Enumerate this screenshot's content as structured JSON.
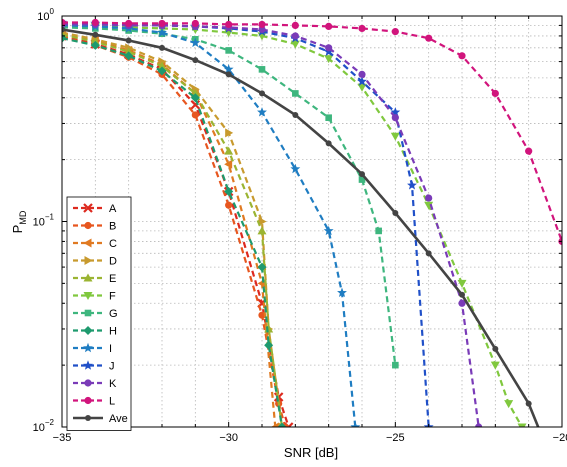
{
  "chart_data": {
    "type": "line",
    "title": "",
    "xlabel": "SNR [dB]",
    "ylabel": {
      "main": "P",
      "sub": "MD"
    },
    "xlim": [
      -35,
      -20
    ],
    "ylim": [
      0.01,
      1
    ],
    "y_scale": "log",
    "grid": true,
    "legend_position": "bottom-left",
    "x_ticks": [
      -35,
      -30,
      -25,
      -20
    ],
    "x_tick_labels": [
      "−35",
      "−30",
      "−25",
      "−20"
    ],
    "y_ticks": [
      0.01,
      0.1,
      1
    ],
    "y_tick_labels": [
      {
        "base": "10",
        "exp": "−2"
      },
      {
        "base": "10",
        "exp": "−1"
      },
      {
        "base": "10",
        "exp": "0"
      }
    ],
    "series": [
      {
        "name": "A",
        "color": "#dd2a1f",
        "marker": "x",
        "x": [
          -35,
          -34,
          -33,
          -32,
          -31,
          -30,
          -29,
          -28.5,
          -28.2
        ],
        "y": [
          0.8,
          0.73,
          0.65,
          0.55,
          0.37,
          0.14,
          0.04,
          0.014,
          0.01
        ]
      },
      {
        "name": "B",
        "color": "#e7561f",
        "marker": "circle",
        "x": [
          -35,
          -34,
          -33,
          -32,
          -31,
          -30,
          -29,
          -28.5,
          -28.3
        ],
        "y": [
          0.79,
          0.72,
          0.63,
          0.52,
          0.33,
          0.12,
          0.035,
          0.013,
          0.01
        ]
      },
      {
        "name": "C",
        "color": "#e07a22",
        "marker": "triangle-left",
        "x": [
          -35,
          -34,
          -33,
          -32,
          -31,
          -30,
          -29,
          -28.6
        ],
        "y": [
          0.82,
          0.76,
          0.68,
          0.58,
          0.42,
          0.19,
          0.05,
          0.01
        ]
      },
      {
        "name": "D",
        "color": "#c89a2e",
        "marker": "triangle-right",
        "x": [
          -35,
          -34,
          -33,
          -32,
          -31,
          -30,
          -29,
          -28.8,
          -28.4
        ],
        "y": [
          0.83,
          0.77,
          0.7,
          0.6,
          0.44,
          0.27,
          0.1,
          0.03,
          0.01
        ]
      },
      {
        "name": "E",
        "color": "#9bb432",
        "marker": "triangle-up",
        "x": [
          -35,
          -34,
          -33,
          -32,
          -31,
          -30,
          -29,
          -28.8,
          -28.4
        ],
        "y": [
          0.81,
          0.75,
          0.67,
          0.57,
          0.42,
          0.22,
          0.09,
          0.03,
          0.01
        ]
      },
      {
        "name": "F",
        "color": "#80c83e",
        "marker": "triangle-down",
        "x": [
          -35,
          -34,
          -33,
          -32,
          -31,
          -30,
          -29,
          -28,
          -27,
          -26,
          -25,
          -24,
          -23,
          -22,
          -21.6,
          -21.2
        ],
        "y": [
          0.9,
          0.89,
          0.88,
          0.87,
          0.86,
          0.83,
          0.8,
          0.73,
          0.62,
          0.45,
          0.26,
          0.12,
          0.05,
          0.02,
          0.013,
          0.01
        ]
      },
      {
        "name": "G",
        "color": "#3eb67e",
        "marker": "square",
        "x": [
          -35,
          -34,
          -33,
          -32,
          -31,
          -30,
          -29,
          -28,
          -27,
          -26,
          -25.5,
          -25
        ],
        "y": [
          0.88,
          0.87,
          0.85,
          0.82,
          0.77,
          0.68,
          0.55,
          0.42,
          0.32,
          0.16,
          0.09,
          0.02
        ]
      },
      {
        "name": "H",
        "color": "#1e9a6e",
        "marker": "diamond",
        "x": [
          -35,
          -34,
          -33,
          -32,
          -31,
          -30,
          -29,
          -28.8,
          -28.4
        ],
        "y": [
          0.78,
          0.72,
          0.64,
          0.54,
          0.4,
          0.14,
          0.06,
          0.025,
          0.01
        ]
      },
      {
        "name": "I",
        "color": "#1f7dc2",
        "marker": "star",
        "x": [
          -35,
          -34,
          -33,
          -32,
          -31,
          -30,
          -29,
          -28,
          -27,
          -26.6,
          -26.2
        ],
        "y": [
          0.9,
          0.89,
          0.87,
          0.83,
          0.74,
          0.55,
          0.34,
          0.18,
          0.09,
          0.045,
          0.01
        ]
      },
      {
        "name": "J",
        "color": "#2050c8",
        "marker": "star",
        "x": [
          -35,
          -34,
          -33,
          -32,
          -31,
          -30,
          -29,
          -28,
          -27,
          -26,
          -25,
          -24.5,
          -24
        ],
        "y": [
          0.93,
          0.92,
          0.91,
          0.9,
          0.89,
          0.87,
          0.84,
          0.78,
          0.67,
          0.48,
          0.34,
          0.15,
          0.01
        ]
      },
      {
        "name": "K",
        "color": "#7a3bb8",
        "marker": "circle",
        "x": [
          -35,
          -34,
          -33,
          -32,
          -31,
          -30,
          -29,
          -28,
          -27,
          -26,
          -25,
          -24,
          -23,
          -22.5
        ],
        "y": [
          0.91,
          0.91,
          0.9,
          0.9,
          0.89,
          0.88,
          0.86,
          0.8,
          0.7,
          0.52,
          0.32,
          0.13,
          0.04,
          0.01
        ]
      },
      {
        "name": "L",
        "color": "#d1147c",
        "marker": "circle",
        "x": [
          -35,
          -34,
          -33,
          -32,
          -31,
          -30,
          -29,
          -28,
          -27,
          -26,
          -25,
          -24,
          -23,
          -22,
          -21,
          -20
        ],
        "y": [
          0.93,
          0.93,
          0.92,
          0.92,
          0.92,
          0.91,
          0.91,
          0.9,
          0.89,
          0.87,
          0.84,
          0.78,
          0.64,
          0.42,
          0.22,
          0.08
        ]
      },
      {
        "name": "Ave",
        "color": "#444444",
        "marker": "dot",
        "solid": true,
        "x": [
          -35,
          -34,
          -33,
          -32,
          -31,
          -30,
          -29,
          -28,
          -27,
          -26,
          -25,
          -24,
          -23,
          -22,
          -21,
          -20.6
        ],
        "y": [
          0.86,
          0.81,
          0.76,
          0.7,
          0.61,
          0.52,
          0.42,
          0.33,
          0.24,
          0.17,
          0.11,
          0.07,
          0.044,
          0.024,
          0.013,
          0.009
        ]
      }
    ]
  }
}
